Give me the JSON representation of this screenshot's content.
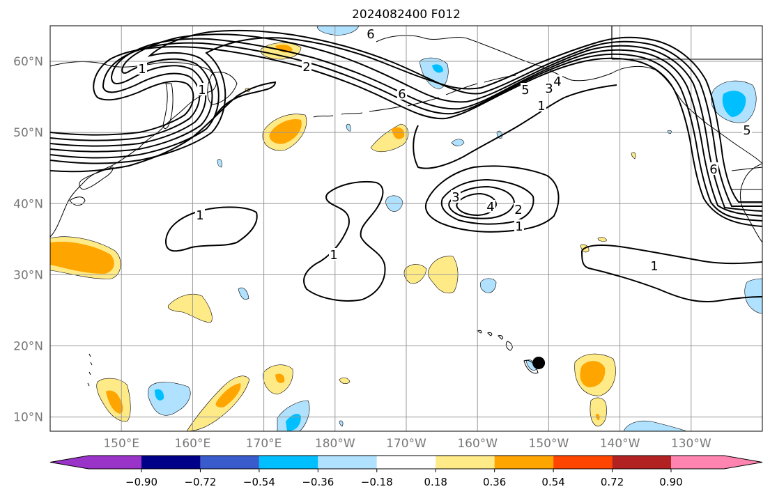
{
  "title": "2024082400 F012",
  "map": {
    "lon_ticks": [
      "150°E",
      "160°E",
      "170°E",
      "180°W",
      "170°W",
      "160°W",
      "150°W",
      "140°W",
      "130°W"
    ],
    "lat_ticks": [
      "60°N",
      "50°N",
      "40°N",
      "30°N",
      "20°N",
      "10°N"
    ],
    "lon_range": [
      140,
      240
    ],
    "lat_range": [
      8,
      65
    ],
    "contour_labels": [
      "1",
      "2",
      "6",
      "1",
      "6",
      "5",
      "3",
      "4",
      "1",
      "3",
      "4",
      "2",
      "1",
      "1",
      "1",
      "1",
      "6",
      "5"
    ],
    "marker": {
      "lon": 208.6,
      "lat": 17.6
    }
  },
  "colorbar": {
    "tick_labels": [
      "−0.90",
      "−0.72",
      "−0.54",
      "−0.36",
      "−0.18",
      "0.18",
      "0.36",
      "0.54",
      "0.72",
      "0.90"
    ],
    "colors": [
      "#9a34c9",
      "#000088",
      "#3a5bcc",
      "#00bfff",
      "#b0e2ff",
      "#ffffff",
      "#ffea88",
      "#ffa500",
      "#ff4500",
      "#b22222",
      "#ff85b0"
    ]
  }
}
